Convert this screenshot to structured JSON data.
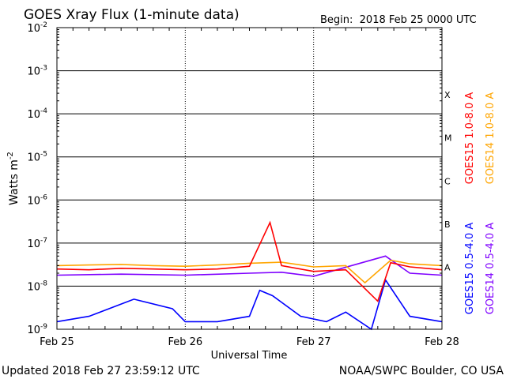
{
  "chart_data": {
    "type": "line",
    "title": "GOES Xray Flux (1-minute data)",
    "begin": "Begin:  2018 Feb 25 0000 UTC",
    "ylabel": "Watts m",
    "ylabel_exp": "-2",
    "xlabel": "Universal Time",
    "y_scale": "log",
    "ylim": [
      1e-09,
      0.01
    ],
    "xlim": [
      0,
      3
    ],
    "grid": "horizontal at each decade, vertical at each day",
    "y_ticks": [
      {
        "base": "10",
        "exp": "-2"
      },
      {
        "base": "10",
        "exp": "-3"
      },
      {
        "base": "10",
        "exp": "-4"
      },
      {
        "base": "10",
        "exp": "-5"
      },
      {
        "base": "10",
        "exp": "-6"
      },
      {
        "base": "10",
        "exp": "-7"
      },
      {
        "base": "10",
        "exp": "-8"
      },
      {
        "base": "10",
        "exp": "-9"
      }
    ],
    "x_ticks": [
      "Feb 25",
      "Feb 26",
      "Feb 27",
      "Feb 28"
    ],
    "flare_classes": [
      {
        "label": "X",
        "value": 0.0001
      },
      {
        "label": "M",
        "value": 1e-05
      },
      {
        "label": "C",
        "value": 1e-06
      },
      {
        "label": "B",
        "value": 1e-07
      },
      {
        "label": "A",
        "value": 1e-08
      }
    ],
    "series": [
      {
        "name": "GOES15 1.0-8.0 A",
        "color": "#ff0000",
        "x": [
          0,
          0.25,
          0.5,
          0.75,
          1.0,
          1.25,
          1.5,
          1.66,
          1.75,
          2.0,
          2.25,
          2.5,
          2.6,
          2.75,
          3.0
        ],
        "values": [
          2.5e-08,
          2.4e-08,
          2.6e-08,
          2.5e-08,
          2.4e-08,
          2.5e-08,
          2.9e-08,
          3e-07,
          3e-08,
          2.2e-08,
          2.4e-08,
          4.5e-09,
          3.5e-08,
          2.8e-08,
          2.4e-08
        ]
      },
      {
        "name": "GOES14 1.0-8.0 A",
        "color": "#ffa500",
        "x": [
          0,
          0.25,
          0.5,
          0.75,
          1.0,
          1.25,
          1.5,
          1.75,
          2.0,
          2.25,
          2.4,
          2.6,
          2.75,
          3.0
        ],
        "values": [
          3e-08,
          3.1e-08,
          3.2e-08,
          3e-08,
          2.9e-08,
          3.1e-08,
          3.4e-08,
          3.6e-08,
          2.8e-08,
          3e-08,
          1.2e-08,
          4e-08,
          3.3e-08,
          3e-08
        ]
      },
      {
        "name": "GOES15 0.5-4.0 A",
        "color": "#0000ff",
        "x": [
          0,
          0.25,
          0.6,
          0.9,
          1.0,
          1.25,
          1.5,
          1.58,
          1.68,
          1.9,
          2.1,
          2.25,
          2.45,
          2.56,
          2.75,
          3.0
        ],
        "values": [
          1.5e-09,
          2e-09,
          5e-09,
          3e-09,
          1.5e-09,
          1.5e-09,
          2e-09,
          8e-09,
          6e-09,
          2e-09,
          1.5e-09,
          2.5e-09,
          1e-09,
          1.4e-08,
          2e-09,
          1.5e-09
        ]
      },
      {
        "name": "GOES14 0.5-4.0 A",
        "color": "#7f00ff",
        "x": [
          0,
          0.5,
          1.0,
          1.5,
          1.75,
          2.0,
          2.56,
          2.75,
          3.0
        ],
        "values": [
          1.8e-08,
          1.9e-08,
          1.8e-08,
          2e-08,
          2.1e-08,
          1.7e-08,
          5e-08,
          2e-08,
          1.8e-08
        ]
      }
    ]
  },
  "footer": {
    "updated": "Updated 2018 Feb 27 23:59:12 UTC",
    "credit": "NOAA/SWPC Boulder, CO USA"
  }
}
